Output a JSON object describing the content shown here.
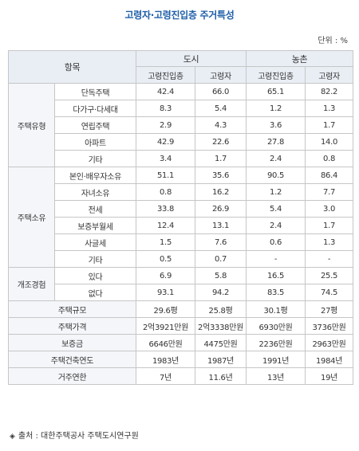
{
  "title": "고령자·고령진입층 주거특성",
  "unit": "단위 : %",
  "header": {
    "item": "항목",
    "city": "도시",
    "rural": "농촌",
    "sub": [
      "고령진입층",
      "고령자",
      "고령진입층",
      "고령자"
    ]
  },
  "groups": [
    {
      "label": "주택유형",
      "rows": [
        {
          "label": "단독주택",
          "values": [
            "42.4",
            "66.0",
            "65.1",
            "82.2"
          ]
        },
        {
          "label": "다가구·다세대",
          "values": [
            "8.3",
            "5.4",
            "1.2",
            "1.3"
          ]
        },
        {
          "label": "연립주택",
          "values": [
            "2.9",
            "4.3",
            "3.6",
            "1.7"
          ]
        },
        {
          "label": "아파트",
          "values": [
            "42.9",
            "22.6",
            "27.8",
            "14.0"
          ]
        },
        {
          "label": "기타",
          "values": [
            "3.4",
            "1.7",
            "2.4",
            "0.8"
          ]
        }
      ]
    },
    {
      "label": "주택소유",
      "rows": [
        {
          "label": "본인·배우자소유",
          "values": [
            "51.1",
            "35.6",
            "90.5",
            "86.4"
          ]
        },
        {
          "label": "자녀소유",
          "values": [
            "0.8",
            "16.2",
            "1.2",
            "7.7"
          ]
        },
        {
          "label": "전세",
          "values": [
            "33.8",
            "26.9",
            "5.4",
            "3.0"
          ]
        },
        {
          "label": "보증부월세",
          "values": [
            "12.4",
            "13.1",
            "2.4",
            "1.7"
          ]
        },
        {
          "label": "사글세",
          "values": [
            "1.5",
            "7.6",
            "0.6",
            "1.3"
          ]
        },
        {
          "label": "기타",
          "values": [
            "0.5",
            "0.7",
            "-",
            "-"
          ]
        }
      ]
    },
    {
      "label": "개조경험",
      "rows": [
        {
          "label": "있다",
          "values": [
            "6.9",
            "5.8",
            "16.5",
            "25.5"
          ]
        },
        {
          "label": "없다",
          "values": [
            "93.1",
            "94.2",
            "83.5",
            "74.5"
          ]
        }
      ]
    }
  ],
  "extra_rows": [
    {
      "label": "주택규모",
      "values": [
        "29.6평",
        "25.8평",
        "30.1평",
        "27평"
      ]
    },
    {
      "label": "주택가격",
      "values": [
        "2억3921만원",
        "2억3338만원",
        "6930만원",
        "3736만원"
      ]
    },
    {
      "label": "보증금",
      "values": [
        "6646만원",
        "4475만원",
        "2236만원",
        "2963만원"
      ]
    },
    {
      "label": "주택건축연도",
      "values": [
        "1983년",
        "1987년",
        "1991년",
        "1984년"
      ]
    },
    {
      "label": "거주연한",
      "values": [
        "7년",
        "11.6년",
        "13년",
        "19년"
      ]
    }
  ],
  "footer": {
    "marker": "◈",
    "text": "출처 : 대한주택공사 주택도시연구원"
  }
}
